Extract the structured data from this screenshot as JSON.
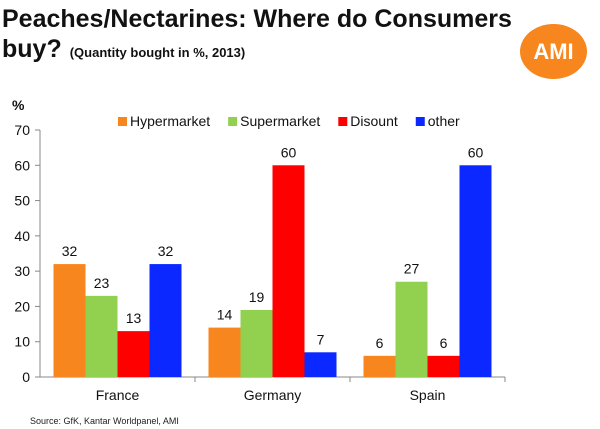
{
  "title_line1": "Peaches/Nectarines: Where do Consumers",
  "title_line2": "buy?",
  "subtitle": "(Quantity bought in %, 2013)",
  "logo": "AMI",
  "source": "Source: GfK, Kantar Worldpanel,  AMI",
  "chart_data": {
    "type": "bar",
    "ylabel": "%",
    "ylim": [
      0,
      70
    ],
    "yticks": [
      0,
      10,
      20,
      30,
      40,
      50,
      60,
      70
    ],
    "categories": [
      "France",
      "Germany",
      "Spain"
    ],
    "legend_position": "top",
    "series": [
      {
        "name": "Hypermarket",
        "color": "#f7861e",
        "values": [
          32,
          14,
          6
        ]
      },
      {
        "name": "Supermarket",
        "color": "#92d050",
        "values": [
          23,
          19,
          27
        ]
      },
      {
        "name": "Disount",
        "color": "#ff0000",
        "values": [
          13,
          60,
          6
        ]
      },
      {
        "name": "other",
        "color": "#0a28ff",
        "values": [
          32,
          7,
          60
        ]
      }
    ]
  }
}
